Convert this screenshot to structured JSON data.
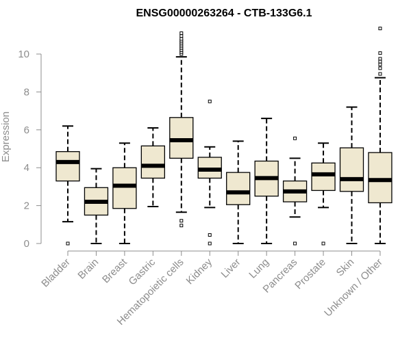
{
  "chart_data": {
    "type": "boxplot",
    "title": "ENSG00000263264 - CTB-133G6.1",
    "ylabel": "Expression",
    "xlabel": "",
    "ylim": [
      0,
      11.5
    ],
    "yticks": [
      0,
      2,
      4,
      6,
      8,
      10
    ],
    "box_fill": "#efe8d0",
    "categories": [
      "Bladder",
      "Brain",
      "Breast",
      "Gastric",
      "Hematopoietic cells",
      "Kidney",
      "Liver",
      "Lung",
      "Pancreas",
      "Prostate",
      "Skin",
      "Unknown / Other"
    ],
    "boxes": [
      {
        "category": "Bladder",
        "whisker_low": 1.15,
        "q1": 3.3,
        "median": 4.3,
        "q3": 4.85,
        "whisker_high": 6.2,
        "outliers": [
          0.0
        ]
      },
      {
        "category": "Brain",
        "whisker_low": 0.0,
        "q1": 1.5,
        "median": 2.2,
        "q3": 2.95,
        "whisker_high": 3.95,
        "outliers": []
      },
      {
        "category": "Breast",
        "whisker_low": 0.0,
        "q1": 1.85,
        "median": 3.05,
        "q3": 4.0,
        "whisker_high": 5.3,
        "outliers": []
      },
      {
        "category": "Gastric",
        "whisker_low": 1.95,
        "q1": 3.45,
        "median": 4.1,
        "q3": 5.15,
        "whisker_high": 6.1,
        "outliers": []
      },
      {
        "category": "Hematopoietic cells",
        "whisker_low": 1.65,
        "q1": 4.5,
        "median": 5.45,
        "q3": 6.65,
        "whisker_high": 9.85,
        "outliers": [
          0.95,
          1.2,
          10.0,
          10.1,
          10.2,
          10.3,
          10.4,
          10.5,
          10.6,
          10.7,
          10.8,
          10.95,
          11.1
        ]
      },
      {
        "category": "Kidney",
        "whisker_low": 1.9,
        "q1": 3.45,
        "median": 3.9,
        "q3": 4.55,
        "whisker_high": 5.1,
        "outliers": [
          0.0,
          0.45,
          7.5
        ]
      },
      {
        "category": "Liver",
        "whisker_low": 0.0,
        "q1": 2.05,
        "median": 2.7,
        "q3": 3.75,
        "whisker_high": 5.4,
        "outliers": []
      },
      {
        "category": "Lung",
        "whisker_low": 0.0,
        "q1": 2.5,
        "median": 3.45,
        "q3": 4.35,
        "whisker_high": 6.6,
        "outliers": []
      },
      {
        "category": "Pancreas",
        "whisker_low": 1.4,
        "q1": 2.2,
        "median": 2.75,
        "q3": 3.3,
        "whisker_high": 4.5,
        "outliers": [
          0.0,
          5.55
        ]
      },
      {
        "category": "Prostate",
        "whisker_low": 1.9,
        "q1": 2.8,
        "median": 3.65,
        "q3": 4.25,
        "whisker_high": 5.3,
        "outliers": [
          0.0
        ]
      },
      {
        "category": "Skin",
        "whisker_low": 0.0,
        "q1": 2.75,
        "median": 3.4,
        "q3": 5.05,
        "whisker_high": 7.2,
        "outliers": []
      },
      {
        "category": "Unknown / Other",
        "whisker_low": 0.0,
        "q1": 2.15,
        "median": 3.35,
        "q3": 4.8,
        "whisker_high": 8.75,
        "outliers": [
          8.95,
          9.25,
          9.45,
          9.6,
          9.75,
          10.05,
          11.35
        ]
      }
    ]
  }
}
